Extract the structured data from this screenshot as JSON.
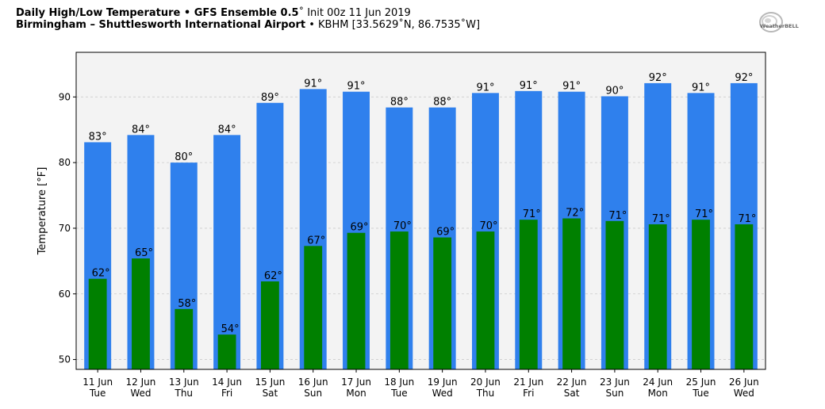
{
  "header": {
    "title_bold": "Daily High/Low Temperature • GFS Ensemble 0.5",
    "title_rest": "˚ Init 00z 11 Jun 2019",
    "location_bold": "Birmingham – Shuttlesworth International Airport",
    "location_rest": " • KBHM [33.5629˚N, 86.7535˚W]"
  },
  "logo": {
    "text": "WeatherBELL"
  },
  "colors": {
    "high_bar": "#2f80ed",
    "low_bar": "#008000",
    "plot_background": "#f3f3f3",
    "grid": "#cccccc"
  },
  "chart_data": {
    "type": "bar",
    "ylabel": "Temperature [°F]",
    "ylim": [
      48.5,
      96.8
    ],
    "yticks": [
      50,
      60,
      70,
      80,
      90
    ],
    "categories": [
      {
        "date": "11 Jun",
        "day": "Tue"
      },
      {
        "date": "12 Jun",
        "day": "Wed"
      },
      {
        "date": "13 Jun",
        "day": "Thu"
      },
      {
        "date": "14 Jun",
        "day": "Fri"
      },
      {
        "date": "15 Jun",
        "day": "Sat"
      },
      {
        "date": "16 Jun",
        "day": "Sun"
      },
      {
        "date": "17 Jun",
        "day": "Mon"
      },
      {
        "date": "18 Jun",
        "day": "Tue"
      },
      {
        "date": "19 Jun",
        "day": "Wed"
      },
      {
        "date": "20 Jun",
        "day": "Thu"
      },
      {
        "date": "21 Jun",
        "day": "Fri"
      },
      {
        "date": "22 Jun",
        "day": "Sat"
      },
      {
        "date": "23 Jun",
        "day": "Sun"
      },
      {
        "date": "24 Jun",
        "day": "Mon"
      },
      {
        "date": "25 Jun",
        "day": "Tue"
      },
      {
        "date": "26 Jun",
        "day": "Wed"
      }
    ],
    "series": [
      {
        "values": [
          83.1,
          84.2,
          80.0,
          84.2,
          89.1,
          91.2,
          90.8,
          88.4,
          88.4,
          90.6,
          90.9,
          90.8,
          90.1,
          92.1,
          90.6,
          92.1
        ],
        "labels": [
          "83°",
          "84°",
          "80°",
          "84°",
          "89°",
          "91°",
          "91°",
          "88°",
          "88°",
          "91°",
          "91°",
          "91°",
          "90°",
          "92°",
          "91°",
          "92°"
        ]
      },
      {
        "values": [
          62.3,
          65.4,
          57.7,
          53.8,
          61.9,
          67.3,
          69.3,
          69.5,
          68.6,
          69.5,
          71.3,
          71.5,
          71.1,
          70.6,
          71.3,
          70.6
        ],
        "labels": [
          "62°",
          "65°",
          "58°",
          "54°",
          "62°",
          "67°",
          "69°",
          "70°",
          "69°",
          "70°",
          "71°",
          "72°",
          "71°",
          "71°",
          "71°",
          "71°"
        ]
      }
    ],
    "grid": true
  }
}
